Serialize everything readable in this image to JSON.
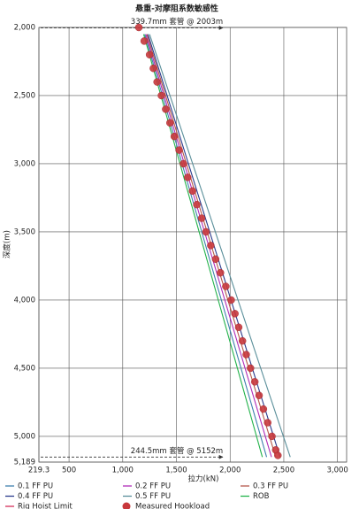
{
  "chart_data": {
    "type": "line",
    "title": "悬重-对摩阻系数敏感性",
    "x_label": "拉力(kN)",
    "y_label": "深度(m)",
    "xlim": [
      219.3,
      3085
    ],
    "ylim": [
      5189,
      2000
    ],
    "xticks": [
      219.3,
      500,
      {
        "value": 1000,
        "label": "1,000"
      },
      {
        "value": 1500,
        "label": "1,500"
      },
      {
        "value": 2000,
        "label": "2,000"
      },
      {
        "value": 2500,
        "label": "2,500"
      },
      {
        "value": 3000,
        "label": "3,000"
      }
    ],
    "yticks": [
      {
        "value": 2000,
        "label": "2,000"
      },
      {
        "value": 2500,
        "label": "2,500"
      },
      {
        "value": 3000,
        "label": "3,000"
      },
      {
        "value": 3500,
        "label": "3,500"
      },
      {
        "value": 4000,
        "label": "4,000"
      },
      {
        "value": 4500,
        "label": "4,500"
      },
      {
        "value": 5000,
        "label": "5,000"
      },
      {
        "value": 5189,
        "label": "5,189"
      }
    ],
    "grid": true,
    "annotations": [
      {
        "text": "339.7mm 套管 @ 2003m",
        "depth": 2003
      },
      {
        "text": "244.5mm 套管 @ 5152m",
        "depth": 5152
      }
    ],
    "series": [
      {
        "name": "0.1 FF PU",
        "color": "#3f7fae",
        "x": [
          1205,
          2340
        ],
        "values": [
          2050,
          5152
        ]
      },
      {
        "name": "0.2 FF PU",
        "color": "#b02cb8",
        "x": [
          1215,
          2385
        ],
        "values": [
          2050,
          5152
        ]
      },
      {
        "name": "0.3 FF PU",
        "color": "#b5584a",
        "x": [
          1225,
          2425
        ],
        "values": [
          2050,
          5152
        ]
      },
      {
        "name": "0.4 FF PU",
        "color": "#2a3a8c",
        "x": [
          1235,
          2465
        ],
        "values": [
          2050,
          5152
        ]
      },
      {
        "name": "0.5 FF PU",
        "color": "#5a8f9a",
        "x": [
          1250,
          2560
        ],
        "values": [
          2050,
          5152
        ]
      },
      {
        "name": "ROB",
        "color": "#22b24a",
        "x": [
          1195,
          2300
        ],
        "values": [
          2050,
          5152
        ]
      },
      {
        "name": "Rig Hoist Limit",
        "color": "#d4305a",
        "x": [
          null,
          null
        ],
        "values": [
          null,
          null
        ]
      },
      {
        "name": "Measured Hookload",
        "color": "#c8383c",
        "marker": "circle",
        "x": [
          1150,
          1200,
          1250,
          1285,
          1320,
          1360,
          1400,
          1440,
          1480,
          1525,
          1565,
          1605,
          1650,
          1690,
          1735,
          1775,
          1820,
          1865,
          1910,
          1960,
          2010,
          2045,
          2080,
          2115,
          2150,
          2190,
          2230,
          2270,
          2310,
          2350,
          2390,
          2425,
          2445
        ],
        "values": [
          2000,
          2100,
          2200,
          2300,
          2400,
          2500,
          2600,
          2700,
          2800,
          2900,
          3000,
          3100,
          3200,
          3300,
          3400,
          3500,
          3600,
          3700,
          3800,
          3900,
          4000,
          4100,
          4200,
          4300,
          4400,
          4500,
          4600,
          4700,
          4800,
          4900,
          5000,
          5100,
          5140
        ]
      }
    ]
  }
}
